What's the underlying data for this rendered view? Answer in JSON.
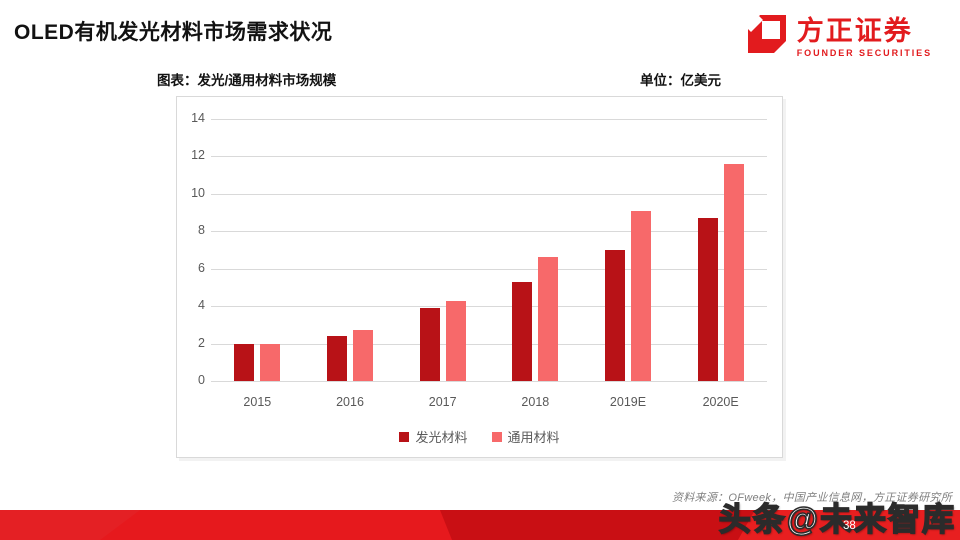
{
  "header": {
    "title": "OLED有机发光材料市场需求状况",
    "logo": {
      "cn": "方正证券",
      "en": "FOUNDER SECURITIES"
    }
  },
  "chart_header": {
    "title": "图表：发光/通用材料市场规模",
    "unit": "单位：亿美元"
  },
  "chart_data": {
    "type": "bar",
    "title": "发光/通用材料市场规模",
    "unit_label": "亿美元",
    "categories": [
      "2015",
      "2016",
      "2017",
      "2018",
      "2019E",
      "2020E"
    ],
    "series": [
      {
        "name": "发光材料",
        "color": "#b81217",
        "values": [
          2.0,
          2.4,
          3.9,
          5.3,
          7.0,
          8.7
        ]
      },
      {
        "name": "通用材料",
        "color": "#f7696a",
        "values": [
          2.0,
          2.7,
          4.3,
          6.6,
          9.1,
          11.6
        ]
      }
    ],
    "ylim": [
      0,
      14
    ],
    "ytick_step": 2,
    "grid": true,
    "legend_position": "bottom"
  },
  "footer": {
    "source": "资料来源：OFweek，中国产业信息网，方正证券研究所",
    "watermark": "头条@未来智库",
    "page_number": "38"
  },
  "colors": {
    "brand_red": "#e21b1e",
    "bar_dark": "#b81217",
    "bar_light": "#f7696a",
    "grid": "#d9d9d9",
    "axis_text": "#595959",
    "footer_bar": "#e6191d"
  }
}
